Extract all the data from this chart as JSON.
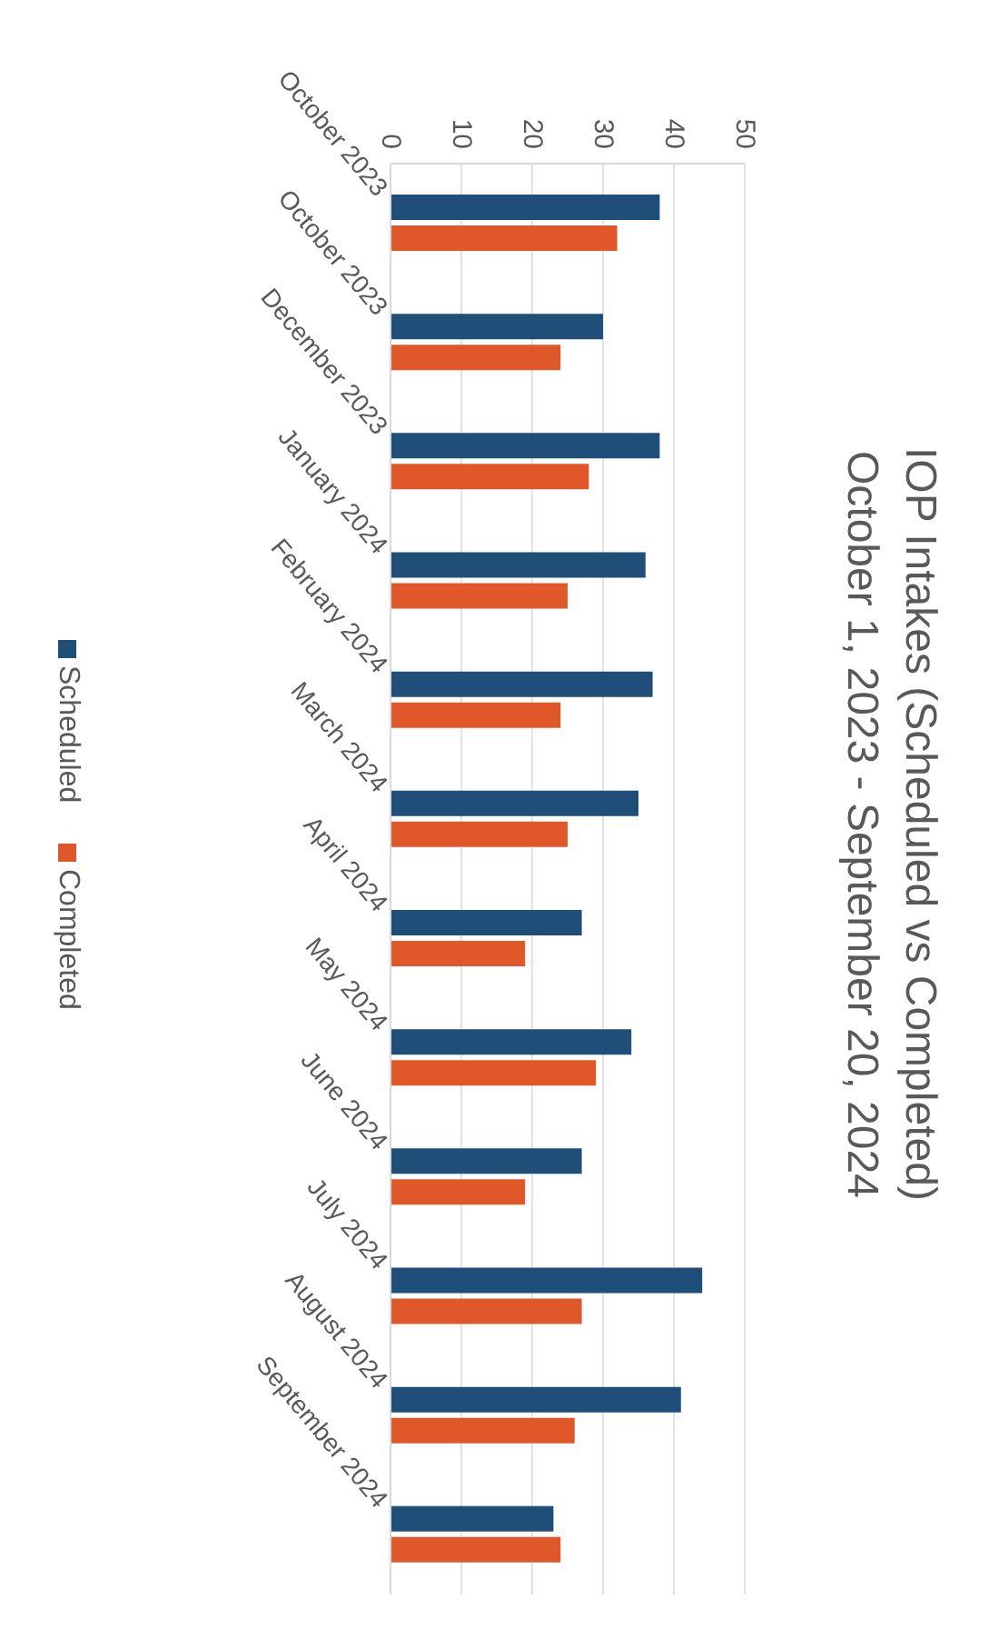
{
  "chart_data": {
    "type": "bar",
    "title": "IOP Intakes (Scheduled vs Completed)",
    "subtitle": "October 1, 2023 - September 20, 2024",
    "categories": [
      "October 2023",
      "October 2023",
      "December 2023",
      "January 2024",
      "February 2024",
      "March 2024",
      "April 2024",
      "May 2024",
      "June 2024",
      "July 2024",
      "August 2024",
      "September 2024"
    ],
    "orientation": "horizontal",
    "series": [
      {
        "name": "Scheduled",
        "color": "#1f4e79",
        "values": [
          38,
          30,
          38,
          36,
          37,
          35,
          27,
          34,
          27,
          44,
          41,
          23
        ]
      },
      {
        "name": "Completed",
        "color": "#e0582a",
        "values": [
          32,
          24,
          28,
          25,
          24,
          25,
          19,
          29,
          19,
          27,
          26,
          24
        ]
      }
    ],
    "xlim": [
      0,
      50
    ],
    "xticks": [
      0,
      10,
      20,
      30,
      40,
      50
    ],
    "grid": "x",
    "legend": "left"
  }
}
